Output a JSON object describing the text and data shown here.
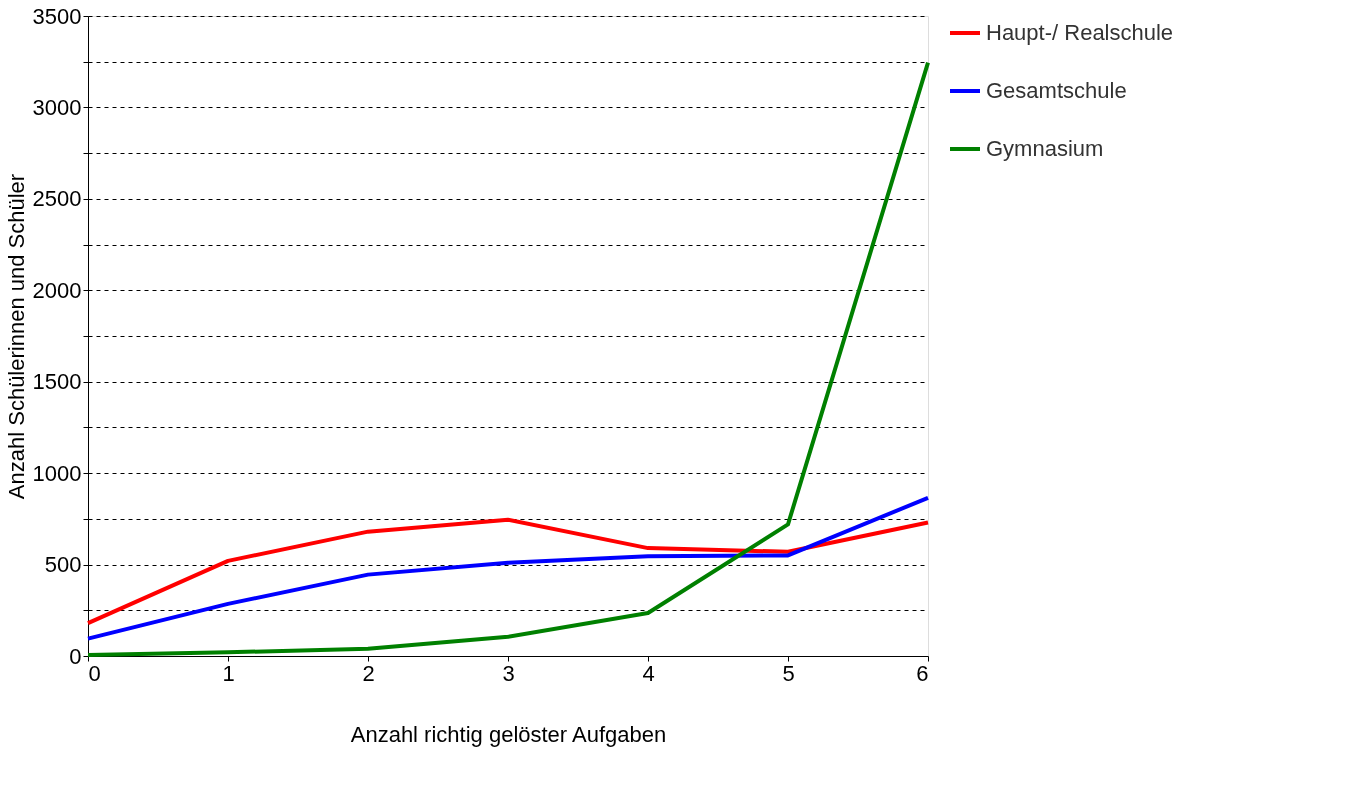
{
  "chart_data": {
    "type": "line",
    "xlabel": "Anzahl richtig gelöster Aufgaben",
    "ylabel": "Anzahl Schülerinnen und Schüler",
    "x": [
      0,
      1,
      2,
      3,
      4,
      5,
      6
    ],
    "series": [
      {
        "name": "Haupt-/ Realschule",
        "color": "#ff0000",
        "values": [
          180,
          520,
          680,
          745,
          590,
          570,
          730
        ]
      },
      {
        "name": "Gesamtschule",
        "color": "#0000ff",
        "values": [
          95,
          285,
          445,
          510,
          545,
          550,
          865
        ]
      },
      {
        "name": "Gymnasium",
        "color": "#008000",
        "values": [
          5,
          20,
          40,
          105,
          235,
          720,
          3245
        ]
      }
    ],
    "xlim": [
      0,
      6
    ],
    "xticks": [
      0,
      1,
      2,
      3,
      4,
      5,
      6
    ],
    "ylim": [
      0,
      3500
    ],
    "yticks": [
      0,
      {
        "value": 250,
        "label": null
      },
      500,
      {
        "value": 750,
        "label": null
      },
      1000,
      {
        "value": 1250,
        "label": null
      },
      1500,
      {
        "value": 1750,
        "label": null
      },
      2000,
      {
        "value": 2250,
        "label": null
      },
      2500,
      {
        "value": 2750,
        "label": null
      },
      3000,
      {
        "value": 3250,
        "label": null
      },
      3500
    ],
    "grid": "y",
    "legend": "right",
    "marker": "none",
    "line_style": "solid"
  }
}
